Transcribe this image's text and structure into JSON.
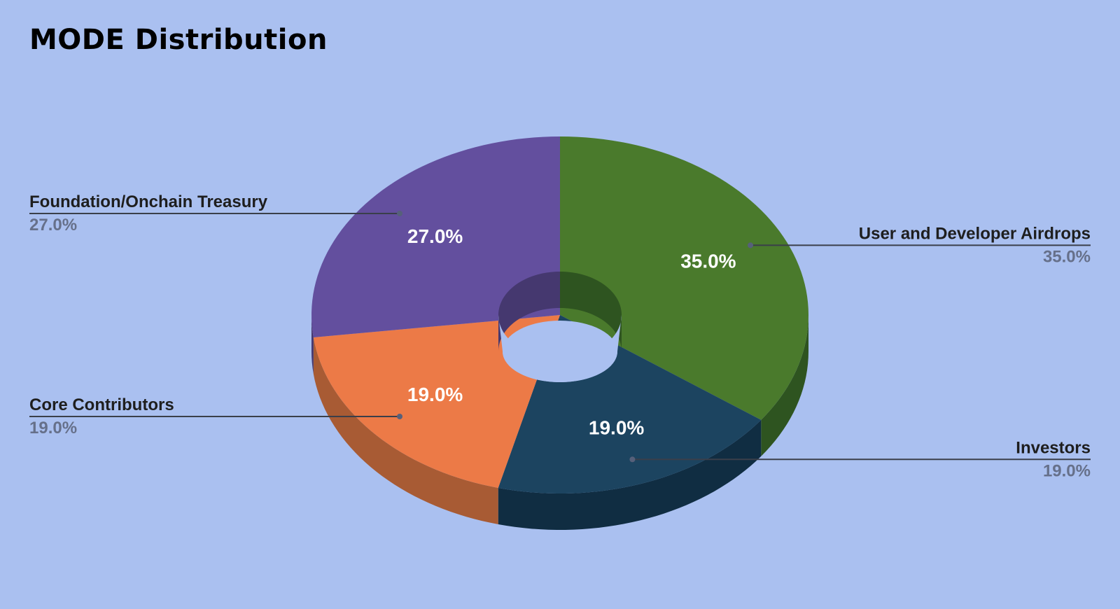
{
  "chart_data": {
    "type": "pie",
    "title": "MODE Distribution",
    "style": "3d-donut",
    "legend": "callouts",
    "slices": [
      {
        "label": "User and Developer Airdrops",
        "value": 35.0,
        "display": "35.0%",
        "color": "#4a7a2c",
        "side_color": "#2e5420",
        "callout_side": "right"
      },
      {
        "label": "Investors",
        "value": 19.0,
        "display": "19.0%",
        "color": "#1c4460",
        "side_color": "#102d42",
        "callout_side": "right"
      },
      {
        "label": "Core Contributors",
        "value": 19.0,
        "display": "19.0%",
        "color": "#ec7a47",
        "side_color": "#a85b34",
        "callout_side": "left"
      },
      {
        "label": "Foundation/Onchain Treasury",
        "value": 27.0,
        "display": "27.0%",
        "color": "#634f9e",
        "side_color": "#45386f",
        "callout_side": "left"
      }
    ]
  },
  "colors": {
    "background": "#aac0f0",
    "callout_line": "#3a3f4a",
    "callout_dot": "#56607a"
  }
}
